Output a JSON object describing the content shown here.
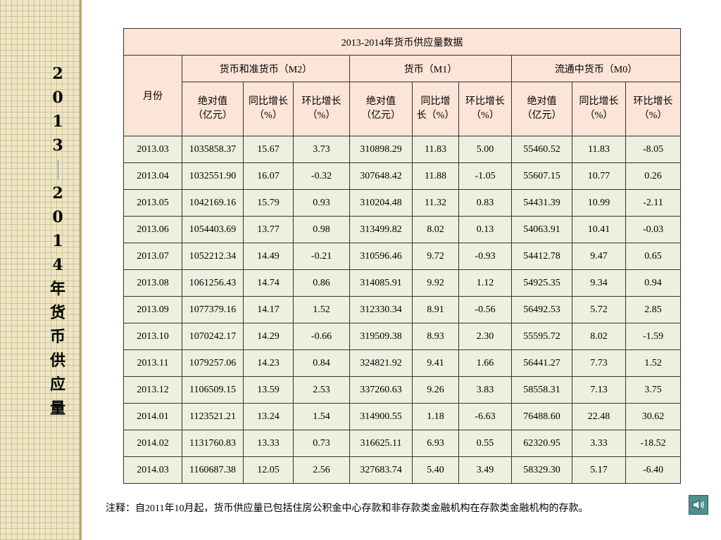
{
  "sidebar": {
    "title_chars": [
      "2",
      "0",
      "1",
      "3",
      "—",
      "2",
      "0",
      "1",
      "4",
      "年",
      "货",
      "币",
      "供",
      "应",
      "量"
    ]
  },
  "table": {
    "title": "2013-2014年货币供应量数据",
    "month_header": "月份",
    "groups": [
      "货币和准货币（M2）",
      "货币（M1）",
      "流通中货币（M0）"
    ],
    "subheaders": [
      [
        "绝对值",
        "（亿元）"
      ],
      [
        "同比增长",
        "（%）"
      ],
      [
        "环比增长",
        "（%）"
      ],
      [
        "绝对值",
        "（亿元）"
      ],
      [
        "同比增",
        "长（%）"
      ],
      [
        "环比增长",
        "（%）"
      ],
      [
        "绝对值",
        "（亿元）"
      ],
      [
        "同比增长",
        "（%）"
      ],
      [
        "环比增长",
        "（%）"
      ]
    ],
    "rows": [
      [
        "2013.03",
        "1035858.37",
        "15.67",
        "3.73",
        "310898.29",
        "11.83",
        "5.00",
        "55460.52",
        "11.83",
        "-8.05"
      ],
      [
        "2013.04",
        "1032551.90",
        "16.07",
        "-0.32",
        "307648.42",
        "11.88",
        "-1.05",
        "55607.15",
        "10.77",
        "0.26"
      ],
      [
        "2013.05",
        "1042169.16",
        "15.79",
        "0.93",
        "310204.48",
        "11.32",
        "0.83",
        "54431.39",
        "10.99",
        "-2.11"
      ],
      [
        "2013.06",
        "1054403.69",
        "13.77",
        "0.98",
        "313499.82",
        "8.02",
        "0.13",
        "54063.91",
        "10.41",
        "-0.03"
      ],
      [
        "2013.07",
        "1052212.34",
        "14.49",
        "-0.21",
        "310596.46",
        "9.72",
        "-0.93",
        "54412.78",
        "9.47",
        "0.65"
      ],
      [
        "2013.08",
        "1061256.43",
        "14.74",
        "0.86",
        "314085.91",
        "9.92",
        "1.12",
        "54925.35",
        "9.34",
        "0.94"
      ],
      [
        "2013.09",
        "1077379.16",
        "14.17",
        "1.52",
        "312330.34",
        "8.91",
        "-0.56",
        "56492.53",
        "5.72",
        "2.85"
      ],
      [
        "2013.10",
        "1070242.17",
        "14.29",
        "-0.66",
        "319509.38",
        "8.93",
        "2.30",
        "55595.72",
        "8.02",
        "-1.59"
      ],
      [
        "2013.11",
        "1079257.06",
        "14.23",
        "0.84",
        "324821.92",
        "9.41",
        "1.66",
        "56441.27",
        "7.73",
        "1.52"
      ],
      [
        "2013.12",
        "1106509.15",
        "13.59",
        "2.53",
        "337260.63",
        "9.26",
        "3.83",
        "58558.31",
        "7.13",
        "3.75"
      ],
      [
        "2014.01",
        "1123521.21",
        "13.24",
        "1.54",
        "314900.55",
        "1.18",
        "-6.63",
        "76488.60",
        "22.48",
        "30.62"
      ],
      [
        "2014.02",
        "1131760.83",
        "13.33",
        "0.73",
        "316625.11",
        "6.93",
        "0.55",
        "62320.95",
        "3.33",
        "-18.52"
      ],
      [
        "2014.03",
        "1160687.38",
        "12.05",
        "2.56",
        "327683.74",
        "5.40",
        "3.49",
        "58329.30",
        "5.17",
        "-6.40"
      ]
    ]
  },
  "note": "注释：自2011年10月起，货币供应量已包括住房公积金中心存款和非存款类金融机构在存款类金融机构的存款。",
  "icons": {
    "speaker": "speaker-icon"
  },
  "colors": {
    "header_bg": "#fce4d6",
    "row_bg": "#ebf1de",
    "sidebar_bg": "#eee6c4"
  }
}
